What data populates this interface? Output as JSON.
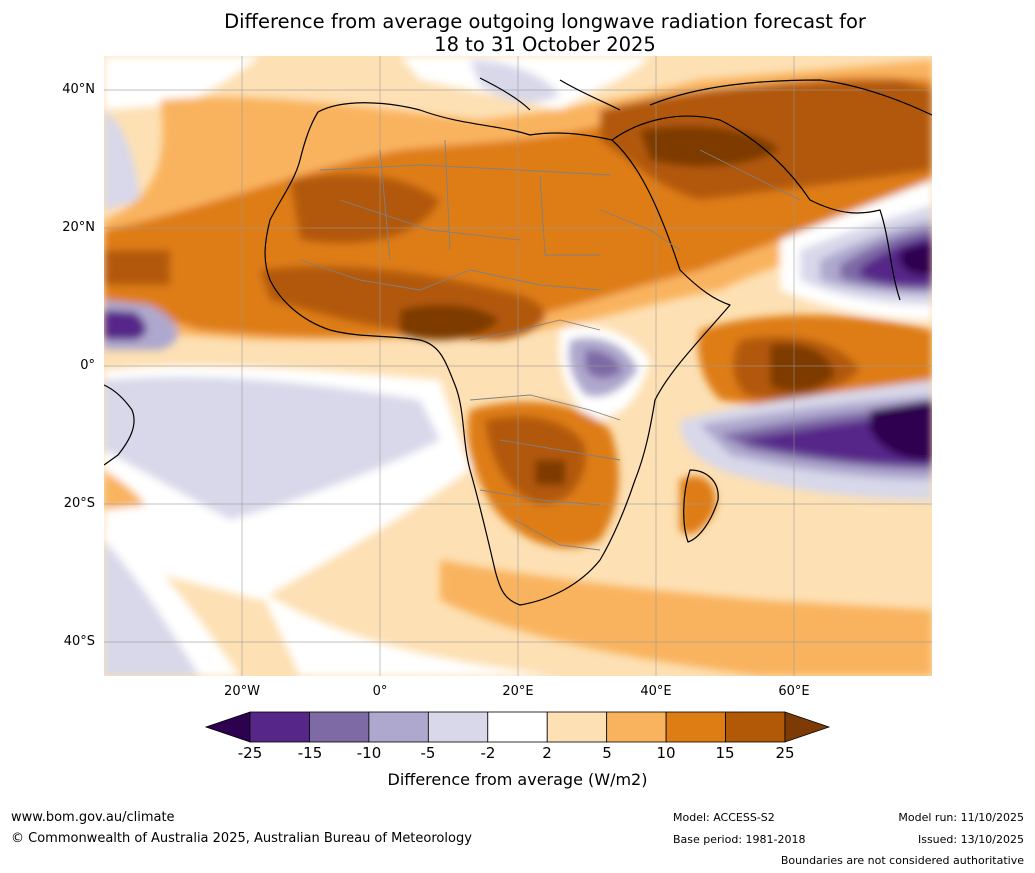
{
  "title": {
    "line1": "Difference from average outgoing longwave radiation forecast for",
    "line2": "18 to 31 October 2025"
  },
  "map": {
    "lat_labels": [
      "40°N",
      "20°N",
      "0°",
      "20°S",
      "40°S"
    ],
    "lon_labels": [
      "20°W",
      "0°",
      "20°E",
      "40°E",
      "60°E"
    ]
  },
  "colorbar": {
    "ticks": [
      "-25",
      "-15",
      "-10",
      "-5",
      "-2",
      "2",
      "5",
      "10",
      "15",
      "25"
    ],
    "label": "Difference from average (W/m2)",
    "colors": {
      "under": "#2d0050",
      "bins": [
        "#572689",
        "#7e6ba6",
        "#afa8ce",
        "#d8d8ea",
        "#ffffff",
        "#fde0b4",
        "#f9b35f",
        "#de7d14",
        "#b25907"
      ],
      "over": "#7d3a05"
    }
  },
  "footer": {
    "website": "www.bom.gov.au/climate",
    "copyright": "© Commonwealth of Australia 2025, Australian Bureau of Meteorology",
    "model": "Model: ACCESS-S2",
    "base_period": "Base period: 1981-2018",
    "model_run": "Model run: 11/10/2025",
    "issued": "Issued: 13/10/2025",
    "disclaimer": "Boundaries are not considered authoritative"
  }
}
